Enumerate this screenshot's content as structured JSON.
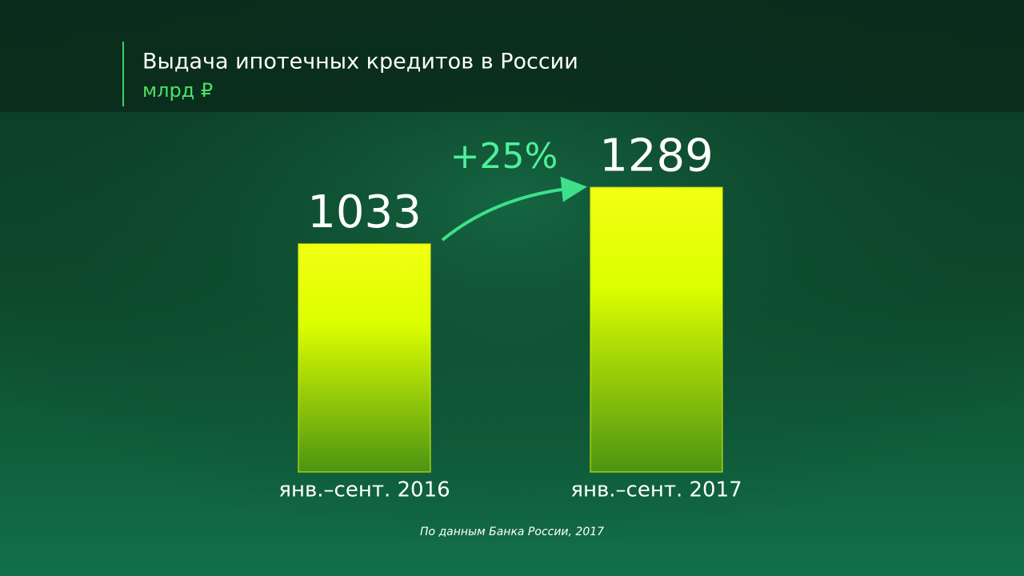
{
  "chart_data": {
    "type": "bar",
    "title": "Выдача ипотечных кредитов в России",
    "subtitle": "млрд ₽",
    "categories": [
      "янв.–сент. 2016",
      "янв.–сент. 2017"
    ],
    "values": [
      1033,
      1289
    ],
    "color": "#e8ff10",
    "annotation": "+25%",
    "source": "По данным Банка России, 2017"
  }
}
